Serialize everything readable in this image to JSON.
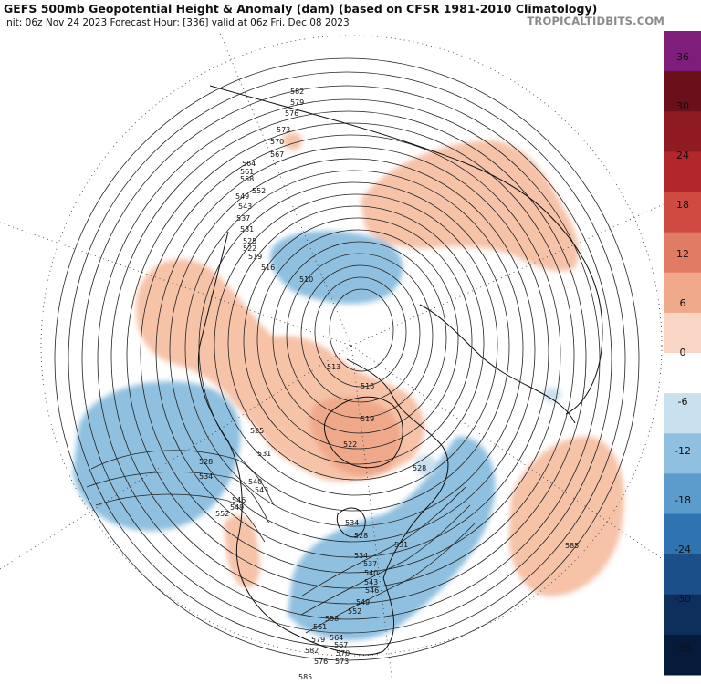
{
  "header": {
    "title": "GEFS 500mb Geopotential Height & Anomaly (dam) (based on CFSR 1981-2010 Climatology)",
    "subtitle": "Init: 06z Nov 24 2023   Forecast Hour: [336]   valid at 06z Fri, Dec 08 2023",
    "brand": "TROPICALTIDBITS.COM"
  },
  "map": {
    "projection": "north-polar-stereographic",
    "contour_labels": [
      "582",
      "579",
      "576",
      "573",
      "570",
      "567",
      "564",
      "561",
      "558",
      "552",
      "549",
      "543",
      "537",
      "531",
      "525",
      "522",
      "519",
      "516",
      "510",
      "513",
      "516",
      "519",
      "522",
      "525",
      "528",
      "531",
      "534",
      "540",
      "543",
      "546",
      "549",
      "552",
      "528",
      "534",
      "528",
      "531",
      "534",
      "537",
      "540",
      "543",
      "546",
      "549",
      "552",
      "558",
      "561",
      "564",
      "567",
      "570",
      "573",
      "576",
      "579",
      "582",
      "585",
      "585"
    ],
    "anomaly_regions": [
      {
        "name": "eastern-pacific-trough",
        "sign": "negative",
        "color": "#8fc0df"
      },
      {
        "name": "eastern-us-trough",
        "sign": "negative",
        "color": "#8fc0df"
      },
      {
        "name": "arctic-low",
        "sign": "negative",
        "color": "#8fc0df"
      },
      {
        "name": "western-canada-ridge",
        "sign": "positive",
        "color": "#f6c2a8"
      },
      {
        "name": "greenland-ridge",
        "sign": "positive",
        "color": "#f0a88a"
      },
      {
        "name": "siberia-ridge",
        "sign": "positive",
        "color": "#f6c2a8"
      },
      {
        "name": "atlantic-ridge",
        "sign": "positive",
        "color": "#f6c2a8"
      }
    ]
  },
  "colorbar": {
    "ticks": [
      "36",
      "30",
      "24",
      "18",
      "12",
      "6",
      "0",
      "-6",
      "-12",
      "-18",
      "-24",
      "-30",
      "-36"
    ],
    "colors": [
      "#7f1d7a",
      "#6b0f1a",
      "#8e1b22",
      "#b3262b",
      "#cf4b42",
      "#e27b63",
      "#f0a88a",
      "#f8d5c4",
      "#ffffff",
      "#c9e0ee",
      "#8fc0df",
      "#5b9ccc",
      "#2f74b0",
      "#1a4f8a",
      "#0e2f5c",
      "#061a3a"
    ]
  }
}
